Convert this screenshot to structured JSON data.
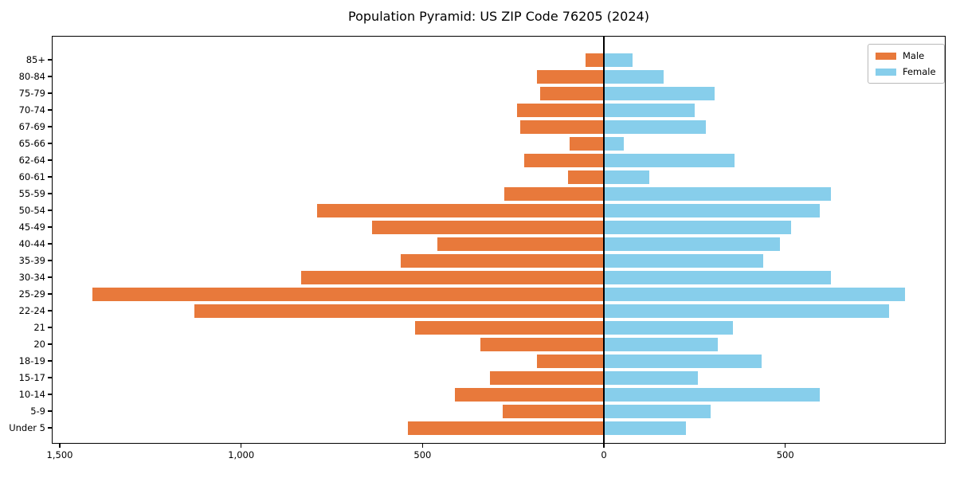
{
  "chart_data": {
    "type": "bar",
    "variant": "population-pyramid",
    "title": "Population Pyramid: US ZIP Code 76205 (2024)",
    "categories_top_to_bottom": [
      "85+",
      "80-84",
      "75-79",
      "70-74",
      "67-69",
      "65-66",
      "62-64",
      "60-61",
      "55-59",
      "50-54",
      "45-49",
      "40-44",
      "35-39",
      "30-34",
      "25-29",
      "22-24",
      "21",
      "20",
      "18-19",
      "15-17",
      "10-14",
      "5-9",
      "Under 5"
    ],
    "series": [
      {
        "name": "Male",
        "side": "left",
        "color": "#e8793b",
        "values": [
          50,
          185,
          175,
          240,
          230,
          95,
          220,
          100,
          275,
          790,
          640,
          460,
          560,
          835,
          1410,
          1130,
          520,
          340,
          185,
          315,
          410,
          280,
          540
        ]
      },
      {
        "name": "Female",
        "side": "right",
        "color": "#87ceeb",
        "values": [
          80,
          165,
          305,
          250,
          280,
          55,
          360,
          125,
          625,
          595,
          515,
          485,
          440,
          625,
          830,
          785,
          355,
          315,
          435,
          260,
          595,
          295,
          225
        ]
      }
    ],
    "xlim": [
      -1522,
      942
    ],
    "x_ticks": [
      {
        "value": -1500,
        "label": "1,500"
      },
      {
        "value": -1000,
        "label": "1,000"
      },
      {
        "value": -500,
        "label": "500"
      },
      {
        "value": 0,
        "label": "0"
      },
      {
        "value": 500,
        "label": "500"
      }
    ],
    "legend_position": "upper-right",
    "grid": false,
    "axis_note": "x axis shows absolute counts; male bars extend left of zero, female bars right"
  }
}
